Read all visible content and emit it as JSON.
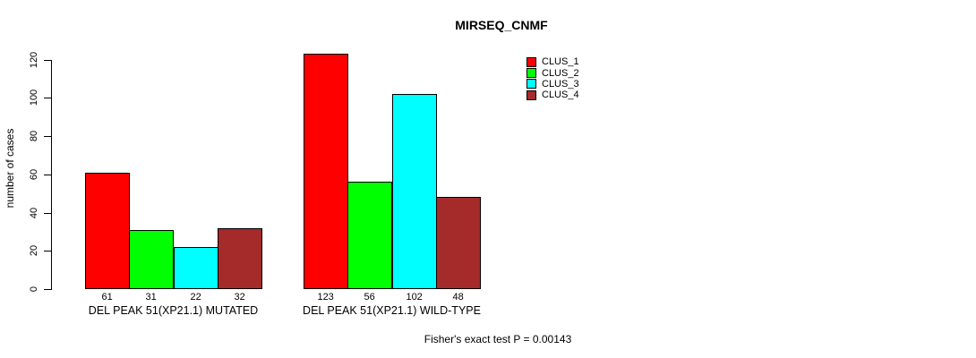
{
  "title": "MIRSEQ_CNMF",
  "footer": "Fisher's exact test P = 0.00143",
  "colors": {
    "clus_1": "#ff0000",
    "clus_2": "#00ff00",
    "clus_3": "#00ffff",
    "clus_4": "#a52a2a",
    "axis": "#000000",
    "background": "#ffffff"
  },
  "chart_data": {
    "type": "bar",
    "title": "MIRSEQ_CNMF",
    "xlabel": "",
    "ylabel": "number of cases",
    "ylim": [
      0,
      123
    ],
    "yticks": [
      0,
      20,
      40,
      60,
      80,
      100,
      120
    ],
    "grid": false,
    "legend_position": "top-right",
    "categories": [
      "DEL PEAK 51(XP21.1) MUTATED",
      "DEL PEAK 51(XP21.1) WILD-TYPE"
    ],
    "series": [
      {
        "name": "CLUS_1",
        "color": "#ff0000",
        "values": [
          61,
          123
        ]
      },
      {
        "name": "CLUS_2",
        "color": "#00ff00",
        "values": [
          31,
          56
        ]
      },
      {
        "name": "CLUS_3",
        "color": "#00ffff",
        "values": [
          22,
          102
        ]
      },
      {
        "name": "CLUS_4",
        "color": "#a52a2a",
        "values": [
          32,
          48
        ]
      }
    ],
    "bar_value_labels": [
      [
        61,
        31,
        22,
        32
      ],
      [
        123,
        56,
        102,
        48
      ]
    ],
    "annotation": "Fisher's exact test P = 0.00143"
  }
}
